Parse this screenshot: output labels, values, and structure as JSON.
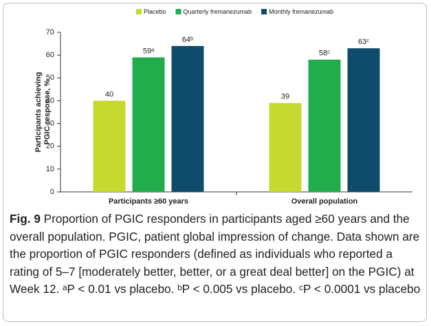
{
  "chart_data": {
    "type": "bar",
    "categories": [
      "Participants ≥60 years",
      "Overall population"
    ],
    "series": [
      {
        "name": "Placebo",
        "color": "#c6d92e",
        "values": [
          40,
          39
        ]
      },
      {
        "name": "Quarterly fremanezumab",
        "color": "#21ad4b",
        "values": [
          59,
          58
        ],
        "value_labels": [
          "59ᵃ",
          "58ᶜ"
        ]
      },
      {
        "name": "Monthly fremanezumab",
        "color": "#0f4b6b",
        "values": [
          64,
          63
        ],
        "value_labels": [
          "64ᵇ",
          "63ᶜ"
        ]
      }
    ],
    "ylabel": [
      "Participants achieving",
      "PGIC response, %"
    ],
    "ylim": [
      0,
      70
    ],
    "yticks": [
      0,
      10,
      20,
      30,
      40,
      50,
      60,
      70
    ]
  },
  "caption": {
    "label": "Fig. 9",
    "text": "Proportion of PGIC responders in participants aged ≥60 years and the overall population. PGIC, patient global impression of change. Data shown are the proportion of PGIC responders (defined as individuals who reported a rating of 5–7 [moderately better, better, or a great deal better] on the PGIC) at Week 12.",
    "notes": [
      "ᵃP < 0.01 vs placebo.",
      "ᵇP < 0.005 vs placebo.",
      "ᶜP < 0.0001 vs placebo"
    ]
  }
}
